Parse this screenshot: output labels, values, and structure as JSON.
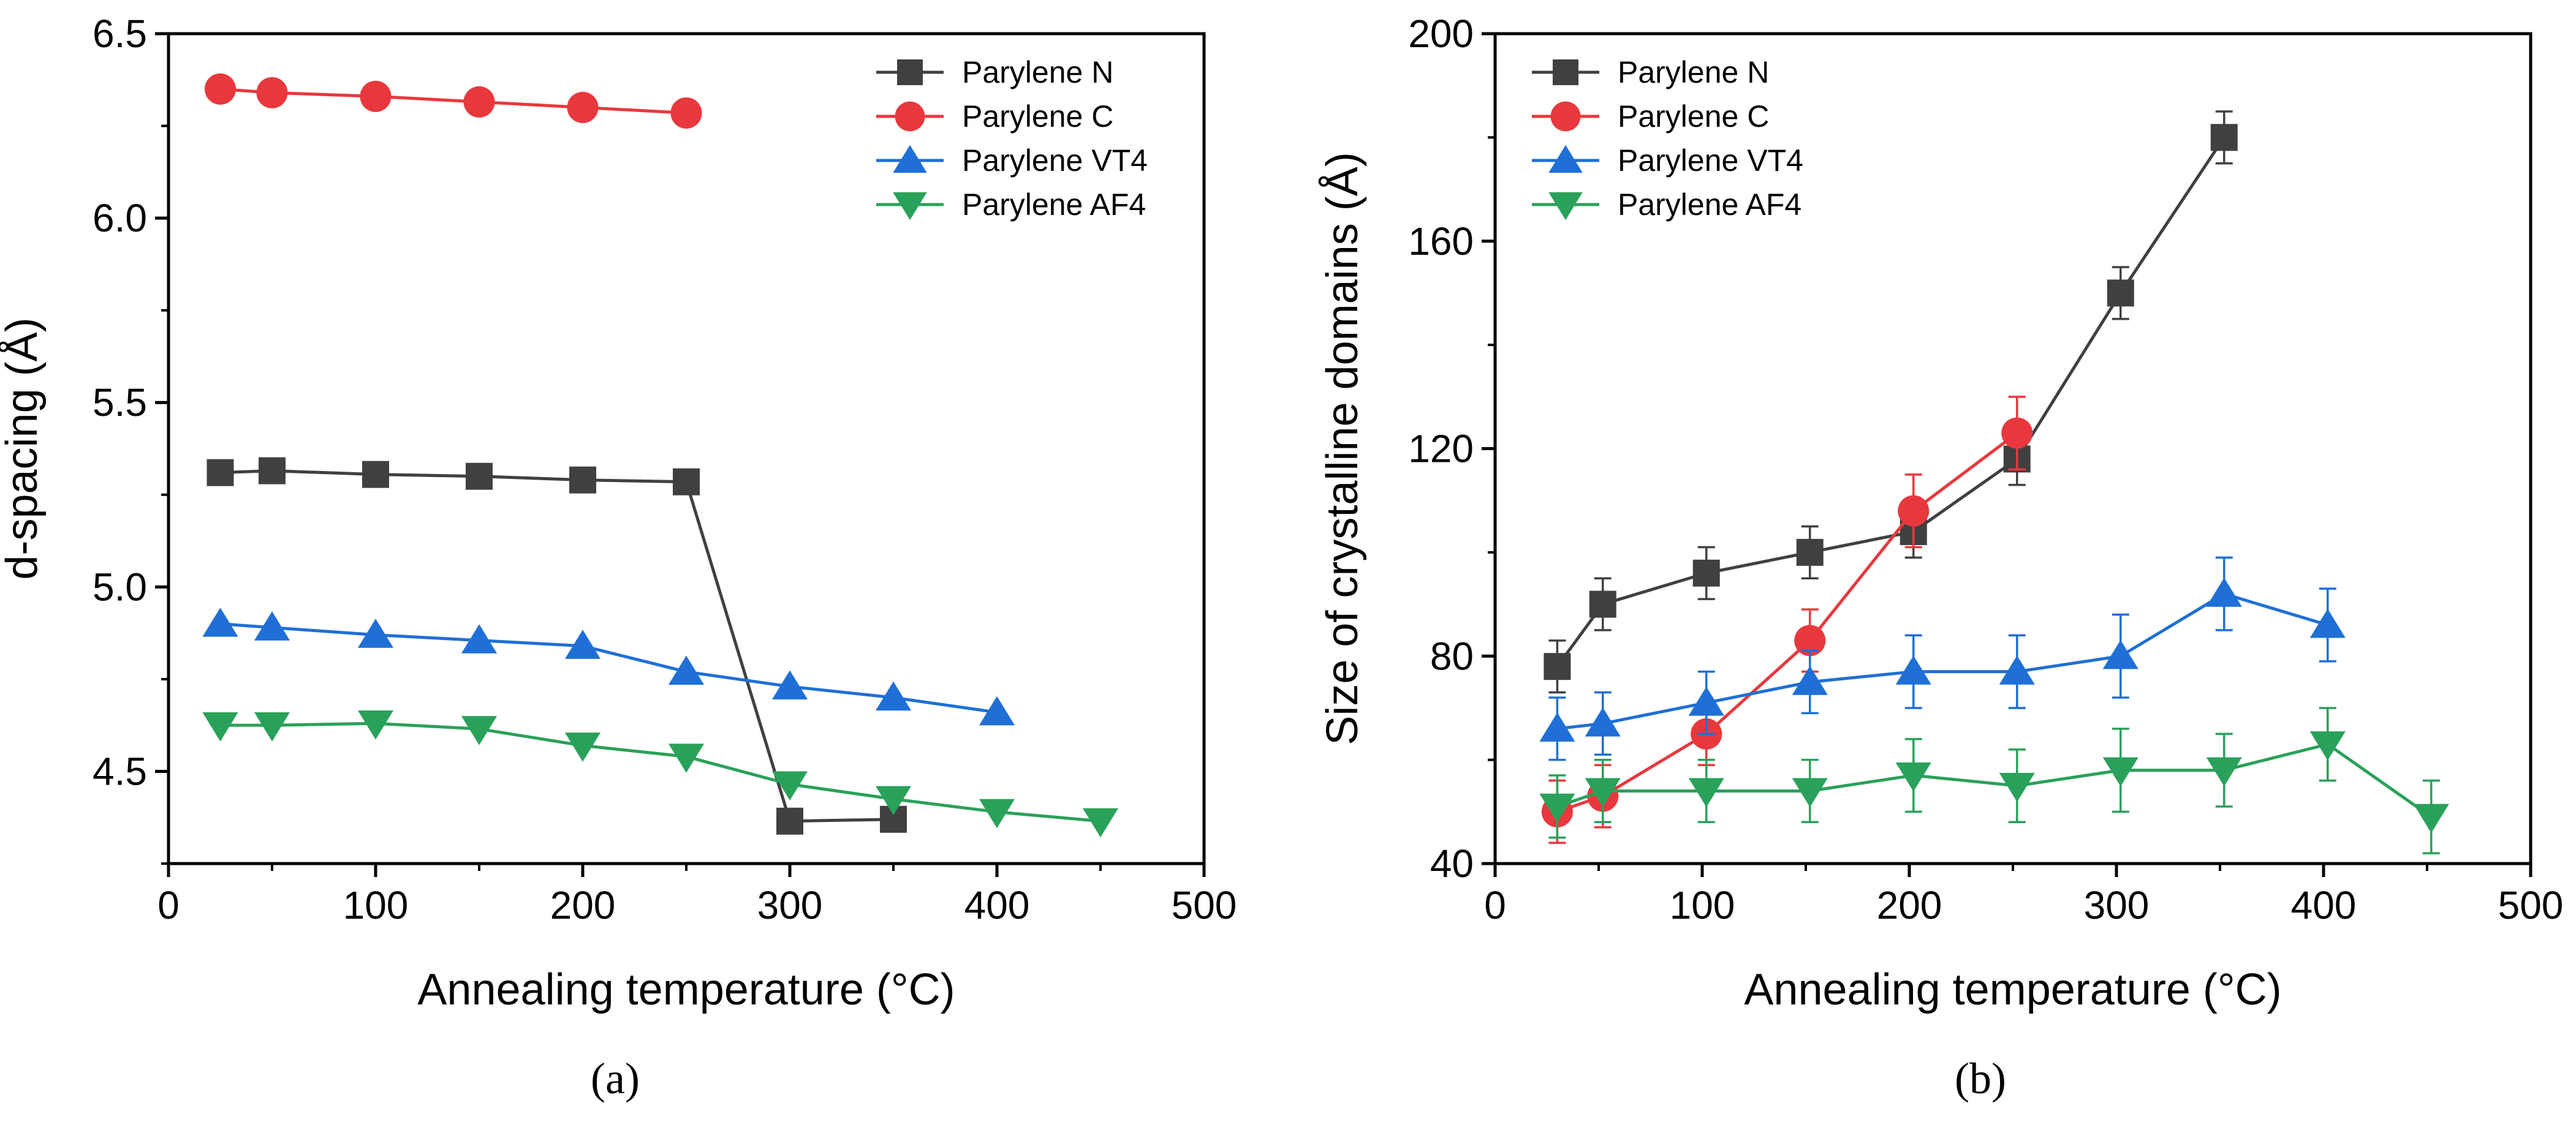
{
  "figure": {
    "panel_labels": [
      "(a)",
      "(b)"
    ]
  },
  "chart_data": [
    {
      "type": "line",
      "panel": "a",
      "title": "",
      "xlabel": "Annealing temperature (°C)",
      "ylabel": "d-spacing (Å)",
      "xlim": [
        0,
        500
      ],
      "ylim": [
        4.25,
        6.5
      ],
      "xticks": [
        0,
        100,
        200,
        300,
        400,
        500
      ],
      "yticks": [
        4.5,
        5.0,
        5.5,
        6.0,
        6.5
      ],
      "ytick_labels": [
        "4.5",
        "5.0",
        "5.5",
        "6.0",
        "6.5"
      ],
      "legend_position": "top-right",
      "series": [
        {
          "name": "Parylene N",
          "color": "#404040",
          "marker": "square",
          "x": [
            25,
            50,
            100,
            150,
            200,
            250,
            300,
            350
          ],
          "y": [
            5.31,
            5.315,
            5.305,
            5.3,
            5.29,
            5.285,
            4.365,
            4.37
          ]
        },
        {
          "name": "Parylene C",
          "color": "#e8383d",
          "marker": "circle",
          "x": [
            25,
            50,
            100,
            150,
            200,
            250
          ],
          "y": [
            6.35,
            6.34,
            6.33,
            6.315,
            6.3,
            6.285
          ]
        },
        {
          "name": "Parylene VT4",
          "color": "#1f6fd6",
          "marker": "triangle-up",
          "x": [
            25,
            50,
            100,
            150,
            200,
            250,
            300,
            350,
            400
          ],
          "y": [
            4.9,
            4.89,
            4.87,
            4.855,
            4.84,
            4.77,
            4.73,
            4.7,
            4.66
          ]
        },
        {
          "name": "Parylene AF4",
          "color": "#2aa15a",
          "marker": "triangle-down",
          "x": [
            25,
            50,
            100,
            150,
            200,
            250,
            300,
            350,
            400,
            450
          ],
          "y": [
            4.625,
            4.625,
            4.63,
            4.615,
            4.57,
            4.54,
            4.465,
            4.425,
            4.39,
            4.365
          ]
        }
      ]
    },
    {
      "type": "line",
      "panel": "b",
      "title": "",
      "xlabel": "Annealing temperature (°C)",
      "ylabel": "Size of crystalline domains (Å)",
      "xlim": [
        0,
        500
      ],
      "ylim": [
        40,
        200
      ],
      "xticks": [
        0,
        100,
        200,
        300,
        400,
        500
      ],
      "yticks": [
        40,
        80,
        120,
        160,
        200
      ],
      "ytick_labels": [
        "40",
        "80",
        "120",
        "160",
        "200"
      ],
      "legend_position": "top-left",
      "series": [
        {
          "name": "Parylene N",
          "color": "#404040",
          "marker": "square",
          "x": [
            30,
            52,
            102,
            152,
            202,
            252,
            302,
            352
          ],
          "y": [
            78,
            90,
            96,
            100,
            104,
            118,
            150,
            180
          ],
          "err": [
            5,
            5,
            5,
            5,
            5,
            5,
            5,
            5
          ]
        },
        {
          "name": "Parylene C",
          "color": "#e8383d",
          "marker": "circle",
          "x": [
            30,
            52,
            102,
            152,
            202,
            252
          ],
          "y": [
            50,
            53,
            65,
            83,
            108,
            123
          ],
          "err": [
            6,
            6,
            6,
            6,
            7,
            7
          ]
        },
        {
          "name": "Parylene VT4",
          "color": "#1f6fd6",
          "marker": "triangle-up",
          "x": [
            30,
            52,
            102,
            152,
            202,
            252,
            302,
            352,
            402
          ],
          "y": [
            66,
            67,
            71,
            75,
            77,
            77,
            80,
            92,
            86
          ],
          "err": [
            6,
            6,
            6,
            6,
            7,
            7,
            8,
            7,
            7
          ]
        },
        {
          "name": "Parylene AF4",
          "color": "#2aa15a",
          "marker": "triangle-down",
          "x": [
            30,
            52,
            102,
            152,
            202,
            252,
            302,
            352,
            402,
            452
          ],
          "y": [
            51,
            54,
            54,
            54,
            57,
            55,
            58,
            58,
            63,
            49
          ],
          "err": [
            6,
            6,
            6,
            6,
            7,
            7,
            8,
            7,
            7,
            7
          ]
        }
      ]
    }
  ]
}
